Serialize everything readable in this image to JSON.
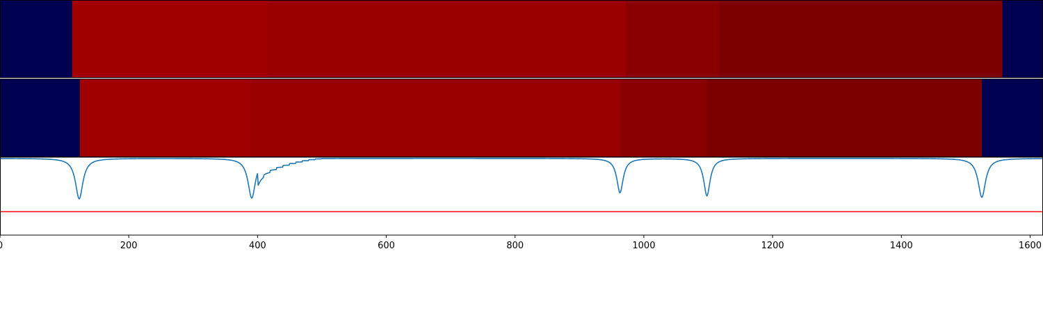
{
  "chart_data": {
    "type": "heatmap",
    "xlim": [
      0,
      1620
    ],
    "x_ticks": [
      0,
      200,
      400,
      600,
      800,
      1000,
      1200,
      1400,
      1600
    ],
    "x_tick_labels": [
      "0",
      "200",
      "400",
      "600",
      "800",
      "1000",
      "1200",
      "1400",
      "1600"
    ],
    "panels": [
      {
        "type": "heatmap",
        "segments": [
          {
            "x0": 0,
            "x1": 112,
            "color": "#000050"
          },
          {
            "x0": 112,
            "x1": 416,
            "color": "#a10000"
          },
          {
            "x0": 416,
            "x1": 972,
            "color": "#990000"
          },
          {
            "x0": 972,
            "x1": 1117,
            "color": "#8a0000"
          },
          {
            "x0": 1117,
            "x1": 1557,
            "color": "#7d0000"
          },
          {
            "x0": 1557,
            "x1": 1620,
            "color": "#000050"
          }
        ]
      },
      {
        "type": "heatmap",
        "segments": [
          {
            "x0": 0,
            "x1": 124,
            "color": "#000050"
          },
          {
            "x0": 124,
            "x1": 390,
            "color": "#a10000"
          },
          {
            "x0": 390,
            "x1": 963,
            "color": "#990000"
          },
          {
            "x0": 963,
            "x1": 1098,
            "color": "#8a0000"
          },
          {
            "x0": 1098,
            "x1": 1525,
            "color": "#7d0000"
          },
          {
            "x0": 1525,
            "x1": 1620,
            "color": "#000050"
          }
        ]
      },
      {
        "type": "line",
        "ylim": [
          0,
          1.0
        ],
        "line_color": "#1f77b4",
        "threshold": 0.3,
        "threshold_color": "#ff0000",
        "dips": [
          {
            "center": 123,
            "depth": 0.52,
            "width": 7
          },
          {
            "center": 391,
            "depth": 0.51,
            "width": 7
          },
          {
            "center": 963,
            "depth": 0.44,
            "width": 6
          },
          {
            "center": 1098,
            "depth": 0.48,
            "width": 6
          },
          {
            "center": 1525,
            "depth": 0.5,
            "width": 7
          }
        ],
        "tail_after": 400,
        "tail_level_start": 0.18,
        "tail_end": 500
      }
    ]
  }
}
